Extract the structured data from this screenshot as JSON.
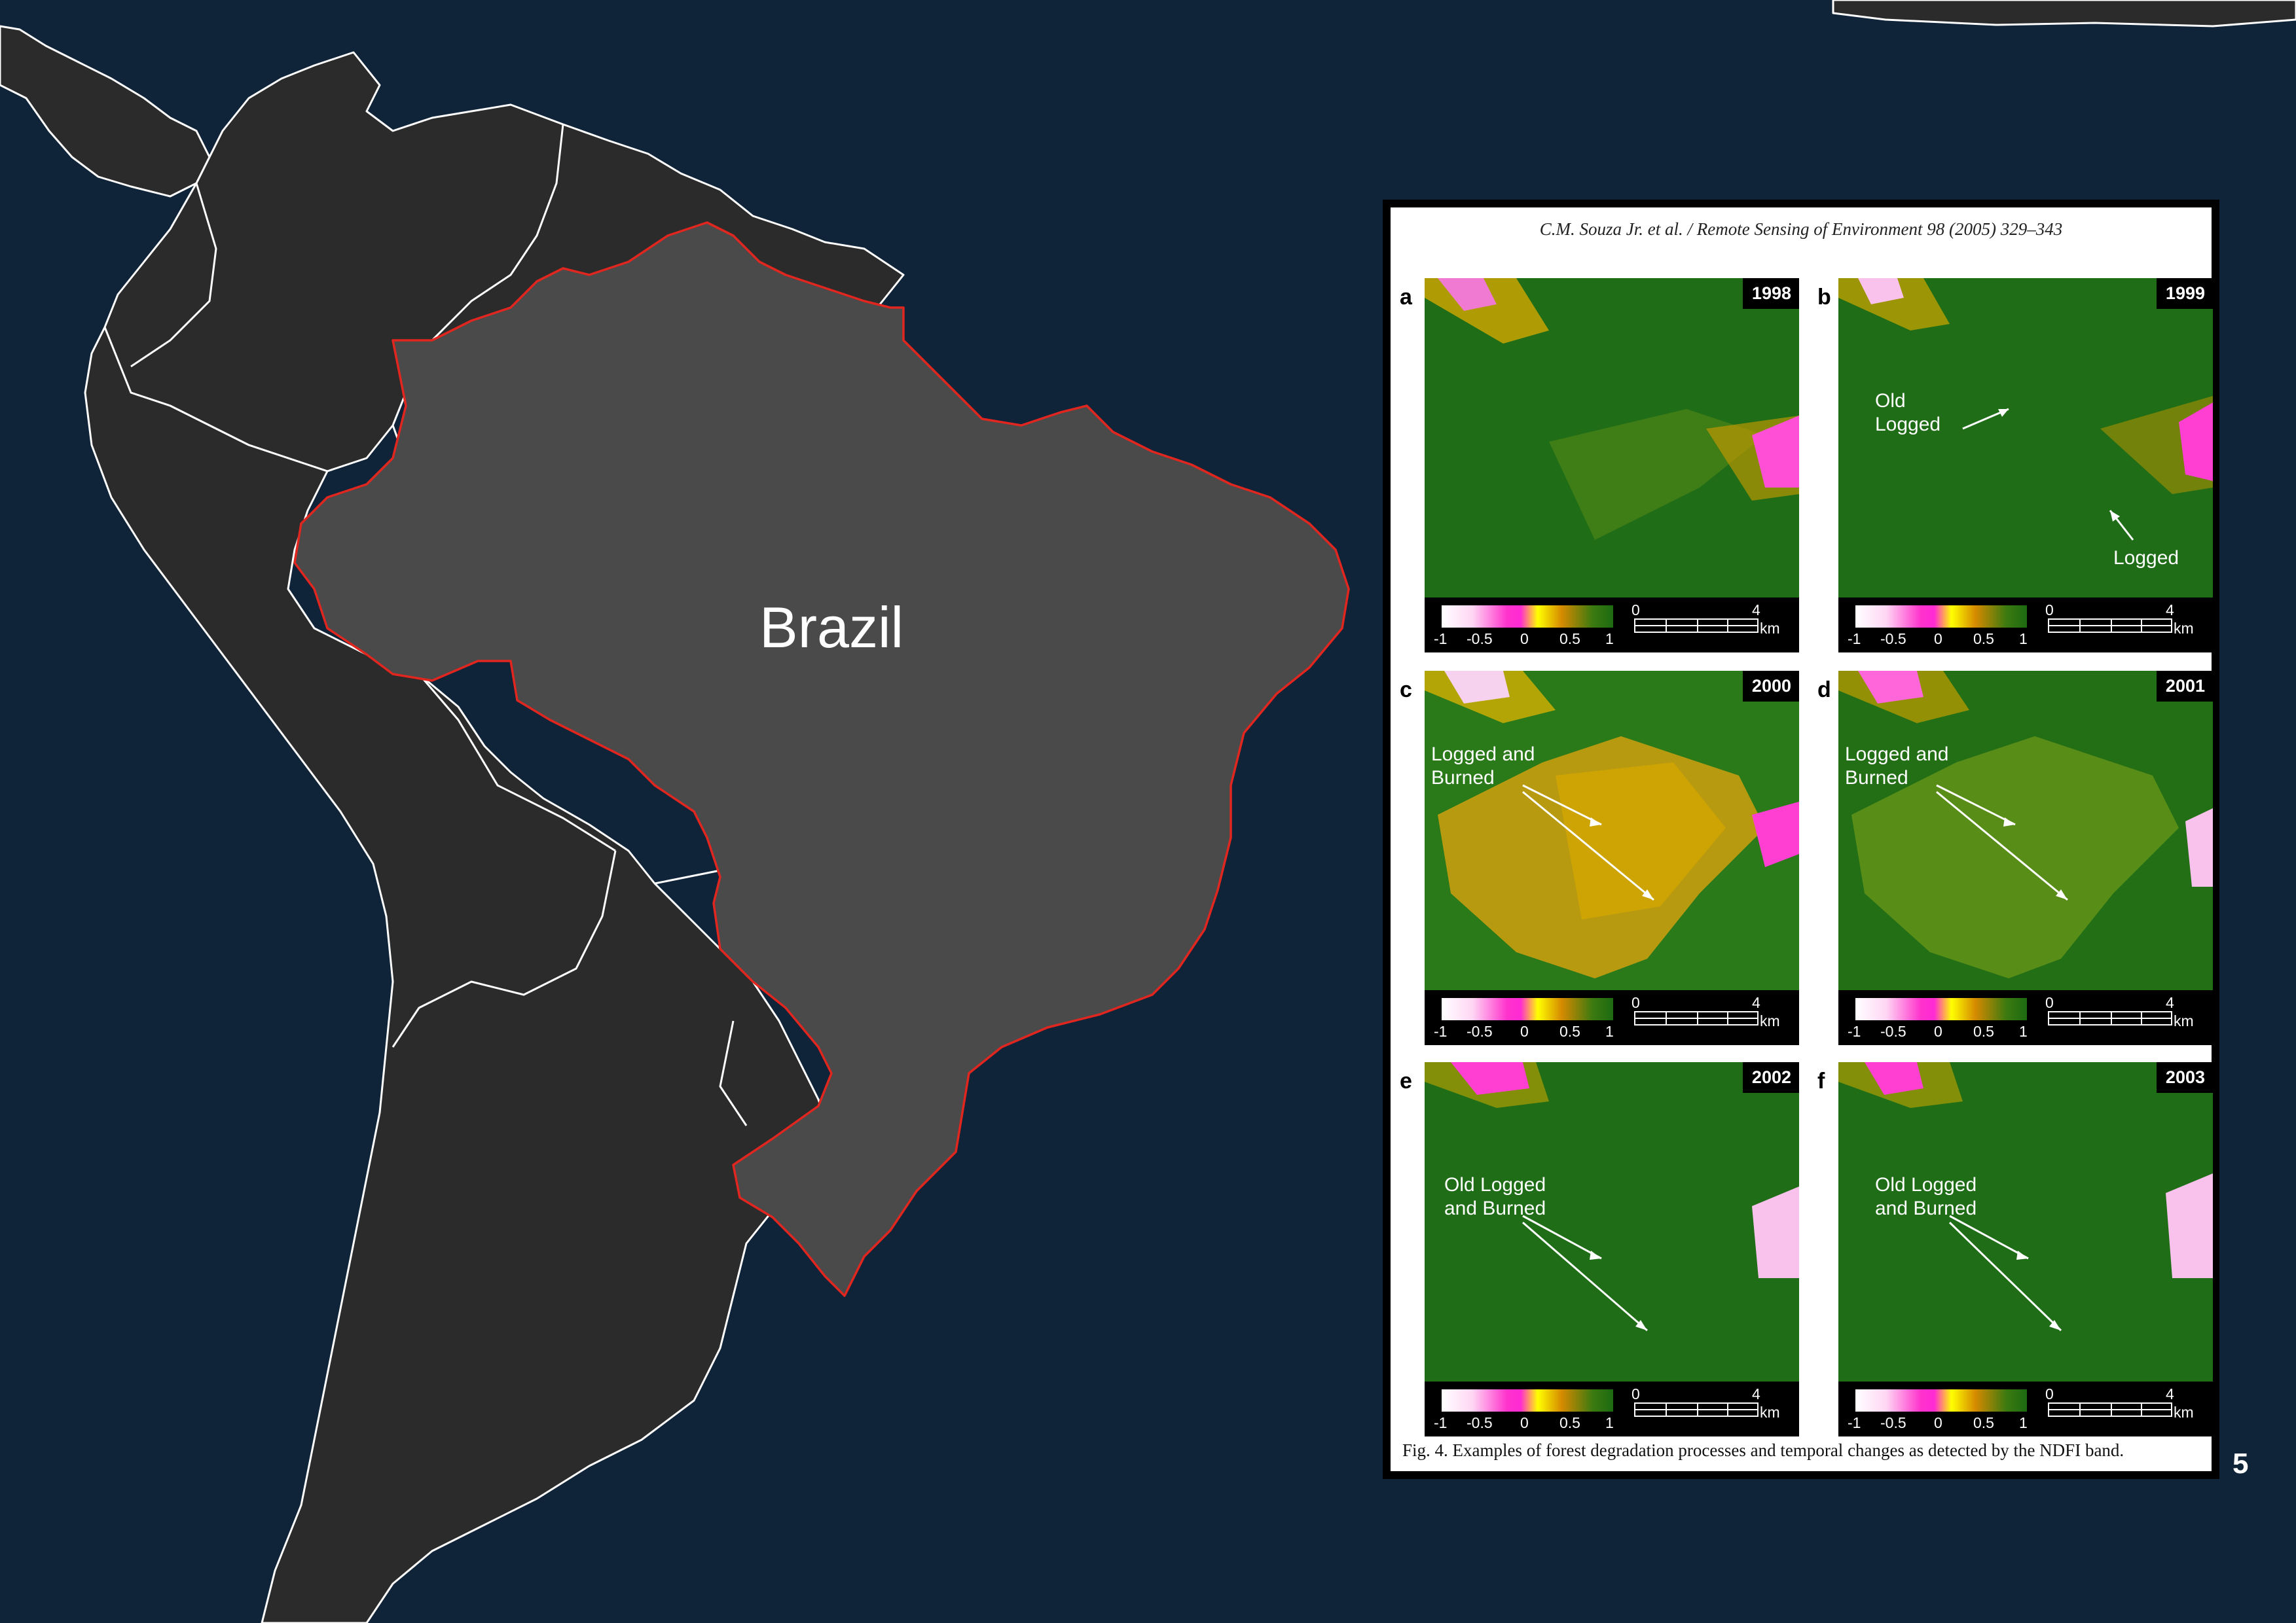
{
  "map": {
    "label": "Brazil",
    "colors": {
      "background": "#0f2438",
      "land": "#2b2b2b",
      "highlight": "#4a4a4a",
      "highlight_border": "#e0261f"
    }
  },
  "figure": {
    "header": "C.M. Souza Jr. et al. / Remote Sensing of Environment 98 (2005) 329–343",
    "caption": "Fig. 4. Examples of forest degradation processes and temporal changes as detected by the NDFI band.",
    "colorbar_ticks": [
      "-1",
      "-0.5",
      "0",
      "0.5",
      "1"
    ],
    "scale": {
      "start": "0",
      "end": "4",
      "unit": "km"
    },
    "panels": [
      {
        "letter": "a",
        "year": "1998",
        "annotations": []
      },
      {
        "letter": "b",
        "year": "1999",
        "annotations": [
          "Old\nLogged",
          "Logged"
        ]
      },
      {
        "letter": "c",
        "year": "2000",
        "annotations": [
          "Logged and\nBurned"
        ]
      },
      {
        "letter": "d",
        "year": "2001",
        "annotations": [
          "Logged and\nBurned"
        ]
      },
      {
        "letter": "e",
        "year": "2002",
        "annotations": [
          "Old Logged\nand Burned"
        ]
      },
      {
        "letter": "f",
        "year": "2003",
        "annotations": [
          "Old Logged\nand Burned"
        ]
      }
    ]
  },
  "page_number": "5"
}
